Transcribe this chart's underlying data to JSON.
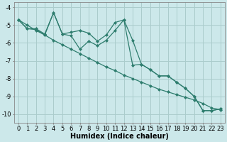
{
  "xlabel": "Humidex (Indice chaleur)",
  "background_color": "#cce8ea",
  "grid_color": "#aacccc",
  "line_color": "#2e7d6e",
  "x_data": [
    0,
    1,
    2,
    3,
    4,
    5,
    6,
    7,
    8,
    9,
    10,
    11,
    12,
    13,
    14,
    15,
    16,
    17,
    18,
    19,
    20,
    21,
    22,
    23
  ],
  "y_jagged": [
    -4.7,
    -5.2,
    -5.2,
    -5.5,
    -4.3,
    -5.5,
    -5.4,
    -5.3,
    -5.45,
    -5.9,
    -5.55,
    -4.85,
    -4.7,
    -5.85,
    -7.2,
    -7.5,
    -7.85,
    -7.85,
    -8.2,
    -8.55,
    -9.0,
    -9.8,
    -9.8,
    -9.7
  ],
  "y_line2": [
    -4.7,
    -5.2,
    -5.25,
    -5.55,
    -4.3,
    -5.5,
    -5.6,
    -6.35,
    -5.9,
    -6.15,
    -5.85,
    -5.3,
    -4.7,
    -7.25,
    -7.2,
    -7.5,
    -7.85,
    -7.85,
    -8.2,
    -8.55,
    -9.0,
    -9.8,
    -9.8,
    -9.7
  ],
  "y_straight": [
    -4.7,
    -5.0,
    -5.3,
    -5.55,
    -5.85,
    -6.1,
    -6.35,
    -6.6,
    -6.85,
    -7.1,
    -7.35,
    -7.55,
    -7.8,
    -8.0,
    -8.2,
    -8.4,
    -8.6,
    -8.75,
    -8.9,
    -9.05,
    -9.2,
    -9.4,
    -9.65,
    -9.75
  ],
  "ylim": [
    -10.5,
    -3.7
  ],
  "xlim": [
    -0.5,
    23.5
  ],
  "yticks": [
    -10,
    -9,
    -8,
    -7,
    -6,
    -5,
    -4
  ],
  "xticks": [
    0,
    1,
    2,
    3,
    4,
    5,
    6,
    7,
    8,
    9,
    10,
    11,
    12,
    13,
    14,
    15,
    16,
    17,
    18,
    19,
    20,
    21,
    22,
    23
  ],
  "xlabel_fontsize": 7,
  "tick_fontsize": 6
}
